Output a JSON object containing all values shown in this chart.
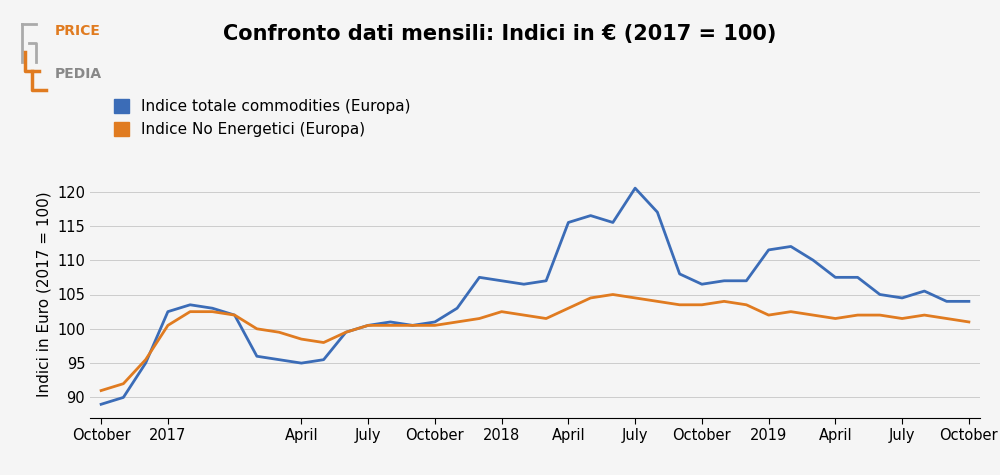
{
  "title": "Confronto dati mensili: Indici in € (2017 = 100)",
  "ylabel": "Indici in Euro (2017 = 100)",
  "legend_labels": [
    "Indice totale commodities (Europa)",
    "Indice No Energetici (Europa)"
  ],
  "line_colors": [
    "#3b6cb7",
    "#e07b20"
  ],
  "line_width": 2.0,
  "background_color": "#f5f5f5",
  "ylim": [
    87,
    123
  ],
  "yticks": [
    90,
    95,
    100,
    105,
    110,
    115,
    120
  ],
  "x_tick_labels": [
    "October",
    "2017",
    "April",
    "July",
    "October",
    "2018",
    "April",
    "July",
    "October",
    "2019",
    "April",
    "July",
    "October"
  ],
  "x_tick_positions": [
    0,
    3,
    9,
    12,
    15,
    18,
    21,
    24,
    27,
    30,
    33,
    36,
    39
  ],
  "series1": [
    89.0,
    90.0,
    95.0,
    102.5,
    103.5,
    103.0,
    102.0,
    96.0,
    95.5,
    95.0,
    95.5,
    99.5,
    100.5,
    101.0,
    100.5,
    101.0,
    103.0,
    107.5,
    107.0,
    106.5,
    107.0,
    115.5,
    116.5,
    115.5,
    120.5,
    117.0,
    108.0,
    106.5,
    107.0,
    107.0,
    111.5,
    112.0,
    110.0,
    107.5,
    107.5,
    105.0,
    104.5,
    105.5,
    104.0,
    104.0
  ],
  "series2": [
    91.0,
    92.0,
    95.5,
    100.5,
    102.5,
    102.5,
    102.0,
    100.0,
    99.5,
    98.5,
    98.0,
    99.5,
    100.5,
    100.5,
    100.5,
    100.5,
    101.0,
    101.5,
    102.5,
    102.0,
    101.5,
    103.0,
    104.5,
    105.0,
    104.5,
    104.0,
    103.5,
    103.5,
    104.0,
    103.5,
    102.0,
    102.5,
    102.0,
    101.5,
    102.0,
    102.0,
    101.5,
    102.0,
    101.5,
    101.0
  ],
  "title_fontsize": 15,
  "legend_fontsize": 11,
  "tick_fontsize": 10.5,
  "ylabel_fontsize": 11,
  "logo_price_color": "#e07b20",
  "logo_pedia_color": "#888888"
}
